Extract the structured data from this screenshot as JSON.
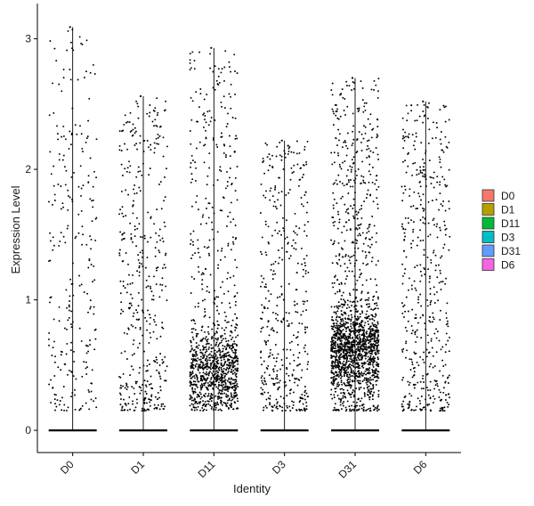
{
  "chart_data": {
    "type": "violin-jitter",
    "title": "",
    "xlabel": "Identity",
    "ylabel": "Expression Level",
    "ylim": [
      -0.17,
      3.27
    ],
    "yticks": [
      0,
      1,
      2,
      3
    ],
    "categories": [
      "D0",
      "D1",
      "D11",
      "D3",
      "D31",
      "D6"
    ],
    "legend": {
      "placement": "right",
      "entries": [
        "D0",
        "D1",
        "D11",
        "D3",
        "D31",
        "D6"
      ],
      "colors": [
        "#F8766D",
        "#B79F00",
        "#00BA38",
        "#00BFC4",
        "#619CFF",
        "#F564E3"
      ]
    },
    "groups": [
      {
        "name": "D0",
        "max": 3.09,
        "zero_band": true,
        "n_points": 260,
        "dense_center": null,
        "dense_frac": 0.0
      },
      {
        "name": "D1",
        "max": 2.56,
        "zero_band": true,
        "n_points": 420,
        "dense_center": null,
        "dense_frac": 0.0
      },
      {
        "name": "D11",
        "max": 2.93,
        "zero_band": true,
        "n_points": 1100,
        "dense_center": 0.45,
        "dense_frac": 0.6
      },
      {
        "name": "D3",
        "max": 2.22,
        "zero_band": true,
        "n_points": 420,
        "dense_center": null,
        "dense_frac": 0.0
      },
      {
        "name": "D31",
        "max": 2.7,
        "zero_band": true,
        "n_points": 1700,
        "dense_center": 0.62,
        "dense_frac": 0.6
      },
      {
        "name": "D6",
        "max": 2.52,
        "zero_band": true,
        "n_points": 480,
        "dense_center": null,
        "dense_frac": 0.0
      }
    ]
  }
}
